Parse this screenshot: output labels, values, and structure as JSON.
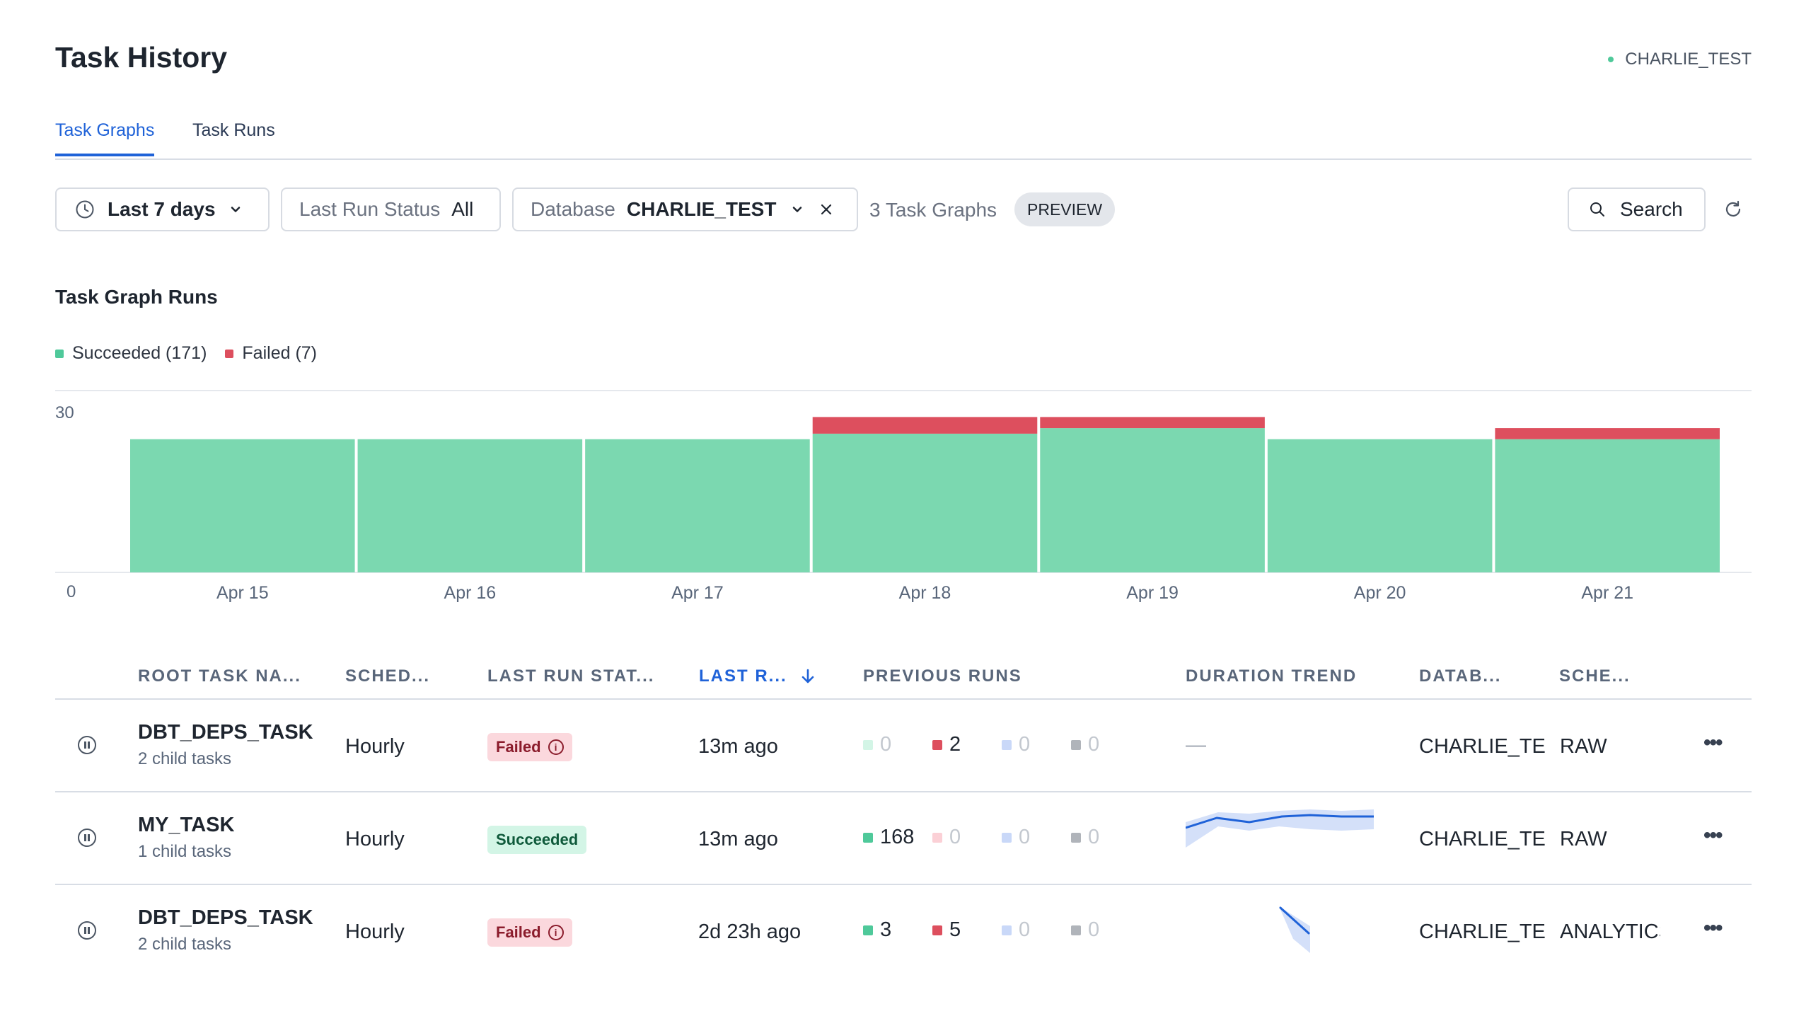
{
  "page": {
    "title": "Task History",
    "account": "CHARLIE_TEST"
  },
  "tabs": [
    {
      "label": "Task Graphs",
      "active": true
    },
    {
      "label": "Task Runs",
      "active": false
    }
  ],
  "filters": {
    "time_range": {
      "value": "Last 7 days"
    },
    "last_run_status": {
      "label": "Last Run Status",
      "value": "All"
    },
    "database": {
      "label": "Database",
      "value": "CHARLIE_TEST"
    },
    "count_text": "3 Task Graphs",
    "preview_badge": "PREVIEW",
    "search_label": "Search"
  },
  "chart_section": {
    "title": "Task Graph Runs",
    "legend": [
      {
        "label": "Succeeded (171)",
        "color": "#7bd8b0"
      },
      {
        "label": "Failed (7)",
        "color": "#dd4f5e"
      }
    ]
  },
  "chart_data": {
    "type": "bar",
    "stacked": true,
    "categories": [
      "Apr 15",
      "Apr 16",
      "Apr 17",
      "Apr 18",
      "Apr 19",
      "Apr 20",
      "Apr 21"
    ],
    "series": [
      {
        "name": "Succeeded",
        "color": "#7bd8b0",
        "values": [
          24,
          24,
          24,
          25,
          26,
          24,
          24
        ]
      },
      {
        "name": "Failed",
        "color": "#dd4f5e",
        "values": [
          0,
          0,
          0,
          3,
          2,
          0,
          2
        ]
      }
    ],
    "ylim": [
      0,
      30
    ],
    "yticks": [
      "0",
      "30"
    ],
    "grid": true
  },
  "table": {
    "columns": [
      "ROOT TASK NA...",
      "SCHED...",
      "LAST RUN STAT...",
      "LAST R...",
      "PREVIOUS RUNS",
      "DURATION TREND",
      "DATAB...",
      "SCHE..."
    ],
    "sorted_column": "LAST R...",
    "rows": [
      {
        "name": "DBT_DEPS_TASK",
        "sub": "2 child tasks",
        "schedule": "Hourly",
        "status": "Failed",
        "last_run": "13m ago",
        "runs": [
          "0",
          "2",
          "0",
          "0"
        ],
        "runs_active": [
          false,
          true,
          false,
          false
        ],
        "trend": "—",
        "database": "CHARLIE_TE",
        "schema": "RAW"
      },
      {
        "name": "MY_TASK",
        "sub": "1 child tasks",
        "schedule": "Hourly",
        "status": "Succeeded",
        "last_run": "13m ago",
        "runs": [
          "168",
          "0",
          "0",
          "0"
        ],
        "runs_active": [
          true,
          false,
          false,
          false
        ],
        "trend": "",
        "database": "CHARLIE_TE",
        "schema": "RAW"
      },
      {
        "name": "DBT_DEPS_TASK",
        "sub": "2 child tasks",
        "schedule": "Hourly",
        "status": "Failed",
        "last_run": "2d 23h ago",
        "runs": [
          "3",
          "5",
          "0",
          "0"
        ],
        "runs_active": [
          true,
          true,
          false,
          false
        ],
        "trend": "",
        "database": "CHARLIE_TE",
        "schema": "ANALYTICS"
      }
    ]
  },
  "run_colors": {
    "succeeded": "#4fc99a",
    "failed": "#dd4f5e",
    "other1": "#9db8f0",
    "other2": "#9ca3af"
  },
  "icons": [
    "clock-icon",
    "chevron-down-icon",
    "close-icon",
    "search-icon",
    "refresh-icon",
    "pause-icon",
    "info-icon",
    "more-icon",
    "arrow-down-icon"
  ]
}
